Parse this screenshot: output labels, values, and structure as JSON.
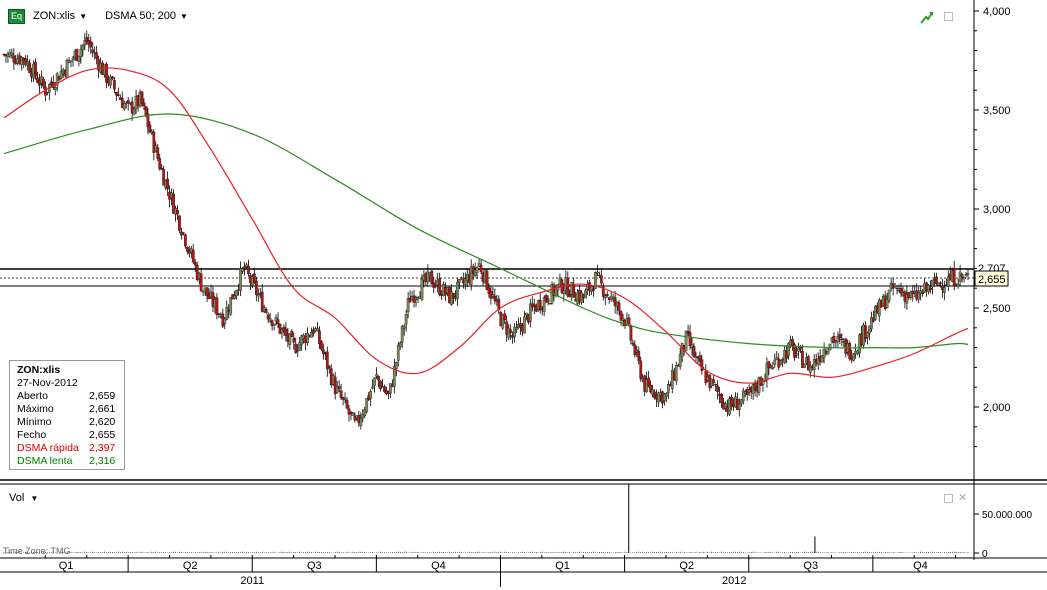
{
  "header": {
    "symbol": "ZON:xlis",
    "indicator": "DSMA 50; 200",
    "eq_badge": "Eq",
    "icons": [
      "trend-arrow-icon",
      "restore-window-icon"
    ]
  },
  "volume_panel": {
    "label": "Vol",
    "timezone": "Time Zone: TMG",
    "axis_labels": [
      "50.000.000",
      "0"
    ],
    "icons": [
      "restore-window-icon",
      "close-icon"
    ]
  },
  "info_box": {
    "symbol": "ZON:xlis",
    "date": "27-Nov-2012",
    "rows": [
      {
        "label": "Aberto",
        "value": "2,659",
        "color": "#000000"
      },
      {
        "label": "Máximo",
        "value": "2,661",
        "color": "#000000"
      },
      {
        "label": "Mínimo",
        "value": "2,620",
        "color": "#000000"
      },
      {
        "label": "Fecho",
        "value": "2,655",
        "color": "#000000"
      },
      {
        "label": "DSMA rápida",
        "value": "2,397",
        "color": "#d40000"
      },
      {
        "label": "DSMA lenta",
        "value": "2,316",
        "color": "#008000"
      }
    ]
  },
  "price_tags": {
    "upper": "2,707",
    "last": "2,655"
  },
  "colors": {
    "fast_ma": "#e8202a",
    "slow_ma": "#2e8b22",
    "up_candle": "#7a8a5a",
    "down_candle": "#b01818",
    "background": "#ffffff",
    "grid_line": "#000000"
  },
  "chart_data": {
    "type": "candlestick",
    "title": "ZON:xlis",
    "y_ticks": [
      "4,000",
      "3,500",
      "3,000",
      "2,500",
      "2,000"
    ],
    "ylim": [
      1.7,
      4.0
    ],
    "quarter_labels": [
      "Q1",
      "Q2",
      "Q3",
      "Q4",
      "Q1",
      "Q2",
      "Q3",
      "Q4"
    ],
    "year_labels": [
      "2011",
      "2012"
    ],
    "horizontal_levels": [
      2.707,
      2.62
    ],
    "price_path": {
      "x_months": [
        0,
        0.5,
        1,
        1.5,
        2,
        2.5,
        3,
        3.3,
        3.8,
        4.3,
        4.8,
        5.3,
        5.8,
        6.3,
        7,
        7.5,
        8,
        8.5,
        9,
        9.3,
        9.8,
        10.3,
        10.8,
        11.2,
        11.5,
        12,
        12.3,
        12.8,
        13.5,
        14,
        14.3,
        15,
        15.5,
        16,
        16.5,
        16.8,
        17.5,
        18,
        18.5,
        19,
        19.5,
        20,
        20.5,
        21,
        21.5,
        22,
        22.5,
        23,
        23.3
      ],
      "close": [
        3.78,
        3.76,
        3.6,
        3.72,
        3.85,
        3.66,
        3.5,
        3.55,
        3.2,
        2.9,
        2.6,
        2.45,
        2.7,
        2.5,
        2.3,
        2.4,
        2.1,
        1.9,
        2.15,
        2.05,
        2.55,
        2.65,
        2.55,
        2.65,
        2.72,
        2.45,
        2.35,
        2.5,
        2.62,
        2.55,
        2.65,
        2.45,
        2.1,
        2.05,
        2.35,
        2.2,
        2.0,
        2.05,
        2.2,
        2.3,
        2.2,
        2.35,
        2.28,
        2.45,
        2.6,
        2.55,
        2.62,
        2.655,
        2.655
      ]
    },
    "series": [
      {
        "name": "DSMA rápida",
        "x_months": [
          0,
          1,
          2,
          3,
          4,
          5,
          6,
          7,
          8,
          9,
          10,
          11,
          12,
          13,
          14,
          15,
          16,
          17,
          18,
          19,
          20,
          21,
          22,
          23,
          23.3
        ],
        "values": [
          3.46,
          3.6,
          3.7,
          3.7,
          3.6,
          3.3,
          2.95,
          2.6,
          2.45,
          2.24,
          2.17,
          2.3,
          2.5,
          2.58,
          2.62,
          2.55,
          2.38,
          2.18,
          2.12,
          2.17,
          2.15,
          2.2,
          2.27,
          2.37,
          2.397
        ]
      },
      {
        "name": "DSMA lenta",
        "x_months": [
          0,
          2,
          4,
          6,
          8,
          10,
          12,
          14,
          15,
          16,
          18,
          20,
          21,
          22,
          23,
          23.3
        ],
        "values": [
          3.28,
          3.4,
          3.48,
          3.38,
          3.15,
          2.9,
          2.7,
          2.5,
          2.42,
          2.37,
          2.32,
          2.3,
          2.3,
          2.3,
          2.32,
          2.316
        ]
      }
    ],
    "volume": {
      "spike_months": [
        15.1,
        19.6
      ],
      "spike_values": [
        87000000,
        21000000
      ],
      "ylim": [
        0,
        100000000
      ]
    }
  }
}
